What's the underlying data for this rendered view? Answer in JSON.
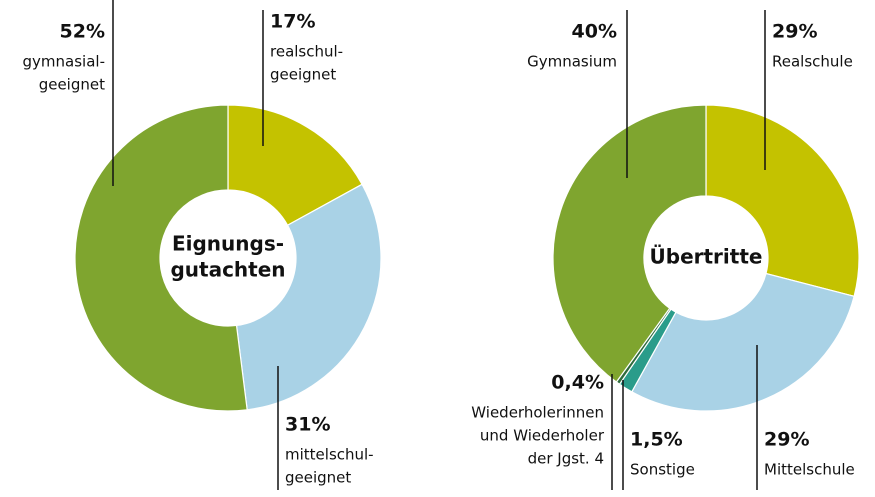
{
  "chart_data": [
    {
      "type": "donut",
      "center_label": [
        "Eignungs-",
        "gutachten"
      ],
      "categories": [
        [
          "realschul-",
          "geeignet"
        ],
        [
          "mittelschul-",
          "geeignet"
        ],
        [
          "gymnasial-",
          "geeignet"
        ]
      ],
      "values": [
        17,
        31,
        52
      ],
      "value_labels": [
        "17%",
        "31%",
        "52%"
      ],
      "colors": [
        "#c4c200",
        "#a9d2e6",
        "#7fa52f"
      ]
    },
    {
      "type": "donut",
      "center_label": [
        "Übertritte"
      ],
      "categories": [
        [
          "Realschule"
        ],
        [
          "Mittelschule"
        ],
        [
          "Sonstige"
        ],
        [
          "Wiederholerinnen",
          "und Wiederholer",
          "der Jgst. 4"
        ],
        [
          "Gymnasium"
        ]
      ],
      "values": [
        29,
        29,
        1.5,
        0.4,
        40
      ],
      "value_labels": [
        "29%",
        "29%",
        "1,5%",
        "0,4%",
        "40%"
      ],
      "colors": [
        "#c4c200",
        "#a9d2e6",
        "#2a9c8a",
        "#2e6b3c",
        "#7fa52f"
      ]
    }
  ]
}
